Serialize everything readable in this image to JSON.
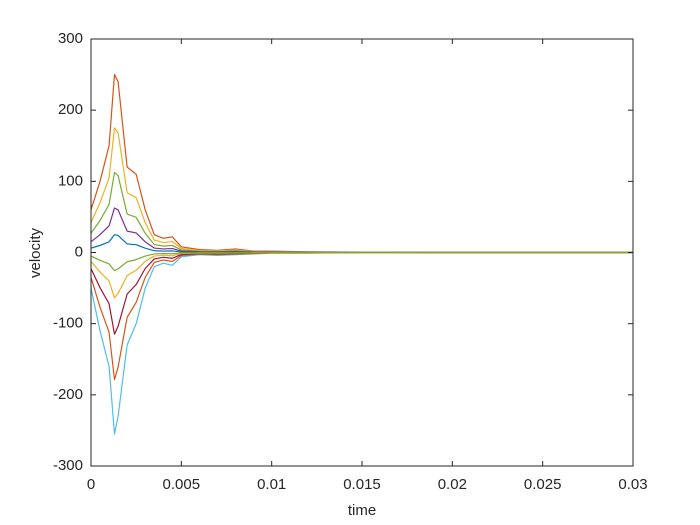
{
  "chart_data": {
    "type": "line",
    "xlabel": "time",
    "ylabel": "velocity",
    "x": [
      0,
      0.0005,
      0.001,
      0.0013,
      0.0015,
      0.002,
      0.0025,
      0.003,
      0.0035,
      0.004,
      0.0045,
      0.005,
      0.006,
      0.007,
      0.008,
      0.009,
      0.01,
      0.012,
      0.015,
      0.02,
      0.025,
      0.03
    ],
    "series": [
      {
        "color": "#D95319",
        "values": [
          60,
          100,
          150,
          250,
          240,
          120,
          110,
          60,
          25,
          20,
          22,
          8,
          4,
          3,
          5,
          2,
          2,
          1,
          0.5,
          0,
          0,
          0
        ]
      },
      {
        "color": "#EDB120",
        "values": [
          42,
          70,
          105,
          175,
          168,
          84,
          77,
          42,
          17.5,
          14,
          15.4,
          5.6,
          2.8,
          2.1,
          3.5,
          1.4,
          1.4,
          0.7,
          0.35,
          0,
          0,
          0
        ]
      },
      {
        "color": "#77AC30",
        "values": [
          27,
          45,
          67.5,
          112.5,
          108,
          54,
          49.5,
          27,
          11.25,
          9,
          9.9,
          3.6,
          1.8,
          1.35,
          2.25,
          0.9,
          0.9,
          0.45,
          0.2,
          0,
          0,
          0
        ]
      },
      {
        "color": "#7E2F8E",
        "values": [
          15,
          25,
          37.5,
          62.5,
          60,
          30,
          27.5,
          15,
          6.25,
          5,
          5.5,
          2,
          1,
          0.75,
          1.25,
          0.5,
          0.5,
          0.25,
          0.1,
          0,
          0,
          0
        ]
      },
      {
        "color": "#0072BD",
        "values": [
          6,
          10,
          15,
          25,
          24,
          12,
          11,
          6,
          2.5,
          2,
          2.2,
          0.8,
          0.4,
          0.3,
          0.5,
          0.2,
          0.2,
          0.1,
          0,
          0,
          0,
          0
        ]
      },
      {
        "color": "#4DBEEE",
        "values": [
          -50,
          -110,
          -160,
          -255,
          -230,
          -130,
          -100,
          -50,
          -20,
          -15,
          -18,
          -6,
          -3,
          -4,
          -3,
          -2,
          -1,
          -1,
          0,
          0,
          0,
          0
        ]
      },
      {
        "color": "#D95319",
        "values": [
          -35,
          -77,
          -112,
          -178.5,
          -161,
          -91,
          -70,
          -35,
          -14,
          -10.5,
          -12.6,
          -4.2,
          -2.1,
          -2.8,
          -2.1,
          -1.4,
          -0.7,
          -0.7,
          0,
          0,
          0,
          0
        ]
      },
      {
        "color": "#A2142F",
        "values": [
          -22.5,
          -49.5,
          -72,
          -114.8,
          -103.5,
          -58.5,
          -45,
          -22.5,
          -9,
          -6.8,
          -8.1,
          -2.7,
          -1.4,
          -1.8,
          -1.4,
          -0.9,
          -0.5,
          -0.5,
          0,
          0,
          0,
          0
        ]
      },
      {
        "color": "#EDB120",
        "values": [
          -12.5,
          -27.5,
          -40,
          -63.8,
          -57.5,
          -32.5,
          -25,
          -12.5,
          -5,
          -3.8,
          -4.5,
          -1.5,
          -0.8,
          -1,
          -0.8,
          -0.5,
          -0.3,
          -0.3,
          0,
          0,
          0,
          0
        ]
      },
      {
        "color": "#77AC30",
        "values": [
          -5,
          -11,
          -16,
          -25.5,
          -23,
          -13,
          -10,
          -5,
          -2,
          -1.5,
          -1.8,
          -0.6,
          -0.3,
          -0.4,
          -0.3,
          -0.2,
          -0.1,
          -0.1,
          0,
          0,
          0,
          0
        ]
      }
    ],
    "xlim": [
      0,
      0.03
    ],
    "xticks": [
      0,
      0.005,
      0.01,
      0.015,
      0.02,
      0.025,
      0.03
    ],
    "ylim": [
      -300,
      300
    ],
    "yticks": [
      -300,
      -200,
      -100,
      0,
      100,
      200,
      300
    ],
    "grid": false
  }
}
